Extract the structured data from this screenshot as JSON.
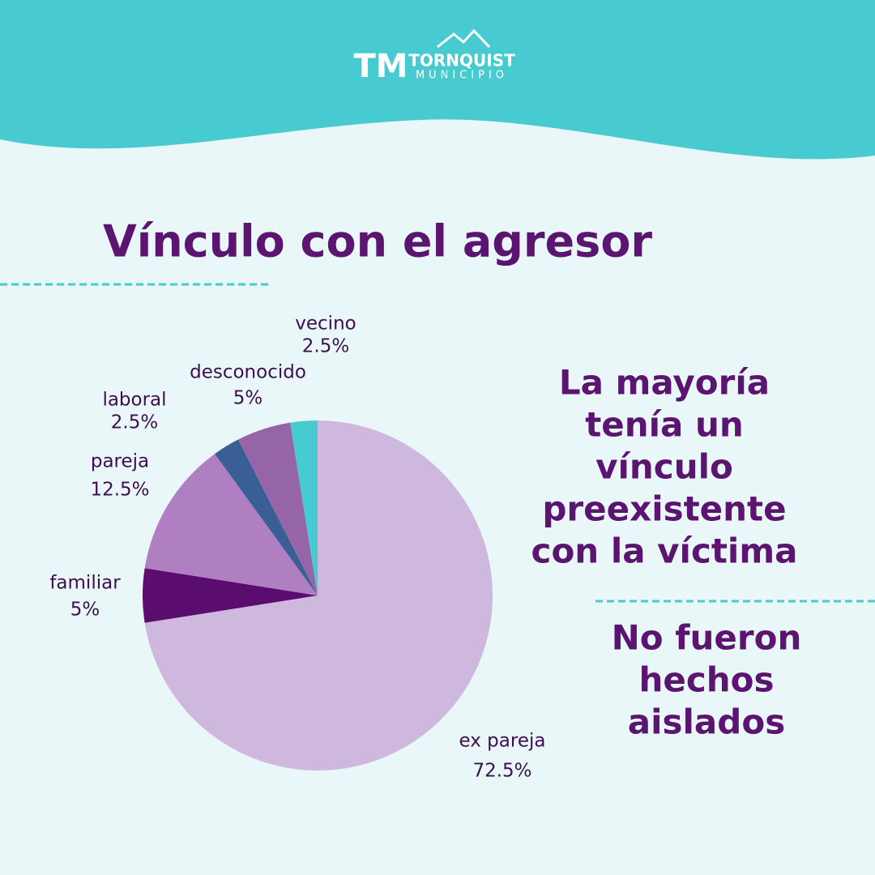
{
  "header": {
    "logo_initials": "TM",
    "logo_name": "TORNQUIST",
    "logo_sub": "MUNICIPIO"
  },
  "chart_data": {
    "type": "pie",
    "title": "Vínculo con el agresor",
    "categories": [
      "ex pareja",
      "familiar",
      "pareja",
      "laboral",
      "desconocido",
      "vecino"
    ],
    "values": [
      72.5,
      5,
      12.5,
      2.5,
      5,
      2.5
    ],
    "value_labels": [
      "72.5%",
      "5%",
      "12.5%",
      "2.5%",
      "5%",
      "2.5%"
    ],
    "colors": [
      "#cfb8dd",
      "#5a0d6e",
      "#b07fc2",
      "#3a5f96",
      "#9565a8",
      "#48cbd0"
    ]
  },
  "notes": [
    {
      "lines": [
        "La mayoría",
        "tenía un",
        "vínculo",
        "preexistente",
        "con la víctima"
      ]
    },
    {
      "lines": [
        "No fueron",
        "hechos",
        "aislados"
      ]
    }
  ]
}
